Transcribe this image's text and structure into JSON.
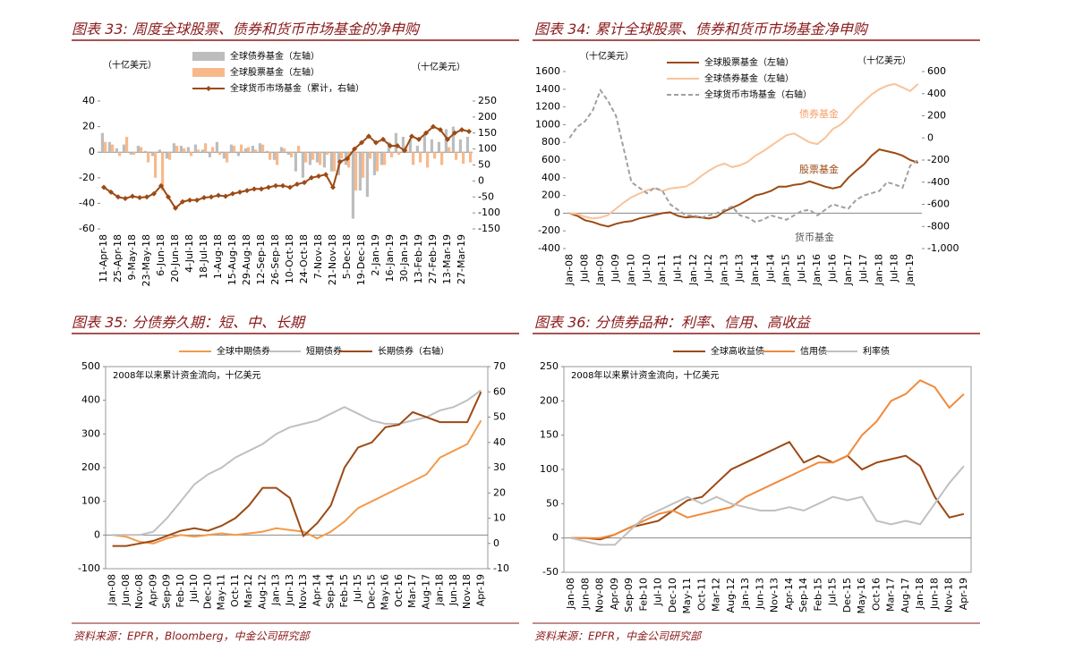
{
  "chart_data": [
    {
      "type": "bar",
      "title": "图表 33: 周度全球股票、债券和货币市场基金的净申购",
      "ylabel": "（十亿美元）",
      "y2label": "（十亿美元）",
      "categories": [
        "11-Apr-18",
        null,
        "25-Apr-18",
        null,
        "9-May-18",
        null,
        "23-May-18",
        null,
        "6-Jun-18",
        null,
        "20-Jun-18",
        null,
        "4-Jul-18",
        null,
        "18-Jul-18",
        null,
        "1-Aug-18",
        null,
        "15-Aug-18",
        null,
        "29-Aug-18",
        null,
        "12-Sep-18",
        null,
        "26-Sep-18",
        null,
        "10-Oct-18",
        null,
        "24-Oct-18",
        null,
        "7-Nov-18",
        null,
        "21-Nov-18",
        null,
        "5-Dec-18",
        null,
        "19-Dec-18",
        null,
        "2-Jan-19",
        null,
        "16-Jan-19",
        null,
        "30-Jan-19",
        null,
        "13-Feb-19",
        null,
        "27-Feb-19",
        null,
        "13-Mar-19",
        null,
        "27-Mar-19",
        null
      ],
      "series": [
        {
          "name": "全球债券基金（左轴）",
          "color": "#bdbdbd",
          "values": [
            15,
            8,
            3,
            6,
            -2,
            5,
            1,
            -3,
            2,
            -5,
            7,
            5,
            4,
            6,
            2,
            -4,
            8,
            -5,
            6,
            -3,
            3,
            5,
            7,
            1,
            -6,
            4,
            -2,
            -15,
            -20,
            -10,
            -8,
            -12,
            -15,
            -18,
            -10,
            -52,
            -30,
            -35,
            -18,
            -10,
            8,
            15,
            12,
            10,
            5,
            14,
            10,
            8,
            18,
            20,
            10,
            12
          ]
        },
        {
          "name": "全球股票基金（左轴）",
          "color": "#f8b98a",
          "values": [
            8,
            6,
            -3,
            12,
            -2,
            4,
            -8,
            -20,
            -30,
            -6,
            5,
            3,
            -3,
            2,
            7,
            4,
            -2,
            -8,
            5,
            6,
            4,
            2,
            6,
            -6,
            -10,
            3,
            -4,
            5,
            -8,
            -6,
            -10,
            -2,
            -15,
            -5,
            -12,
            -30,
            -20,
            -5,
            -15,
            -10,
            -4,
            -2,
            5,
            -10,
            -8,
            -12,
            -5,
            -10,
            4,
            -6,
            -9,
            -8
          ]
        },
        {
          "name": "全球货币市场基金（累计，右轴）",
          "color": "#9c4a14",
          "type": "line",
          "marker": "diamond",
          "axis": "y2",
          "values": [
            -20,
            -35,
            -50,
            -55,
            -48,
            -52,
            -50,
            -40,
            -15,
            -50,
            -85,
            -65,
            -60,
            -60,
            -52,
            -50,
            -45,
            -48,
            -40,
            -35,
            -30,
            -25,
            -25,
            -20,
            -15,
            -15,
            -20,
            -10,
            -5,
            10,
            15,
            20,
            -20,
            60,
            70,
            100,
            120,
            140,
            120,
            130,
            110,
            110,
            95,
            140,
            130,
            150,
            170,
            160,
            130,
            150,
            160,
            155
          ]
        }
      ],
      "ylim": [
        -60,
        40
      ],
      "yticks": [
        -60,
        -40,
        -20,
        0,
        20,
        40
      ],
      "y2lim": [
        -150,
        250
      ],
      "y2ticks": [
        -150,
        -100,
        -50,
        0,
        50,
        100,
        150,
        200,
        250
      ]
    },
    {
      "type": "line",
      "title": "图表 34: 累计全球股票、债券和货币市场基金净申购",
      "ylabel": "（十亿美元）",
      "y2label": "（十亿美元）",
      "categories": [
        "Jan-08",
        null,
        "Jul-08",
        null,
        "Jan-09",
        null,
        "Jul-09",
        null,
        "Jan-10",
        null,
        "Jul-10",
        null,
        "Jan-11",
        null,
        "Jul-11",
        null,
        "Jan-12",
        null,
        "Jul-12",
        null,
        "Jan-13",
        null,
        "Jul-13",
        null,
        "Jan-14",
        null,
        "Jul-14",
        null,
        "Jan-15",
        null,
        "Jul-15",
        null,
        "Jan-16",
        null,
        "Jul-16",
        null,
        "Jan-17",
        null,
        "Jul-17",
        null,
        "Jan-18",
        null,
        "Jul-18",
        null,
        "Jan-19",
        null
      ],
      "series": [
        {
          "name": "全球股票基金（左轴）",
          "color": "#9c4a14",
          "values": [
            0,
            -30,
            -80,
            -100,
            -130,
            -150,
            -120,
            -100,
            -90,
            -60,
            -40,
            -20,
            0,
            10,
            -30,
            -50,
            -40,
            -50,
            -60,
            -40,
            20,
            60,
            100,
            150,
            200,
            220,
            250,
            300,
            300,
            320,
            330,
            360,
            330,
            300,
            280,
            300,
            400,
            480,
            550,
            650,
            720,
            700,
            680,
            650,
            600,
            570
          ]
        },
        {
          "name": "全球债券基金（左轴）",
          "color": "#f8c39a",
          "values": [
            0,
            -10,
            -40,
            -60,
            -50,
            -20,
            50,
            120,
            180,
            220,
            260,
            280,
            250,
            280,
            290,
            300,
            350,
            420,
            480,
            530,
            560,
            520,
            540,
            580,
            650,
            700,
            760,
            820,
            880,
            900,
            850,
            800,
            780,
            850,
            950,
            1000,
            1080,
            1180,
            1260,
            1340,
            1400,
            1440,
            1460,
            1420,
            1380,
            1460
          ]
        },
        {
          "name": "全球货币市场基金（右轴）",
          "color": "#a0a0a0",
          "dash": true,
          "axis": "y2",
          "values": [
            0,
            100,
            150,
            250,
            430,
            330,
            200,
            -100,
            -400,
            -450,
            -500,
            -450,
            -480,
            -600,
            -650,
            -700,
            -700,
            -720,
            -700,
            -680,
            -650,
            -620,
            -700,
            -720,
            -760,
            -740,
            -700,
            -720,
            -740,
            -700,
            -660,
            -650,
            -700,
            -650,
            -600,
            -620,
            -640,
            -560,
            -520,
            -500,
            -480,
            -400,
            -420,
            -450,
            -250,
            -200
          ]
        }
      ],
      "annotations": [
        "债券基金",
        "股票基金",
        "货币基金"
      ],
      "ylim": [
        -400,
        1600
      ],
      "yticks": [
        -400,
        -200,
        0,
        200,
        400,
        600,
        800,
        1000,
        1200,
        1400,
        1600
      ],
      "y2lim": [
        -1000,
        600
      ],
      "y2ticks": [
        {
          "value": -1000,
          "label": "-1,000"
        },
        -800,
        -600,
        -400,
        -200,
        0,
        200,
        400,
        600
      ]
    },
    {
      "type": "line",
      "title": "图表 35: 分债券久期：短、中、长期",
      "annotation": "2008年以来累计资金流向，十亿美元",
      "source": "资料来源：EPFR，Bloomberg，中金公司研究部",
      "categories": [
        "Jan-08",
        "Jun-08",
        "Nov-08",
        "Apr-09",
        "Sep-09",
        "Feb-10",
        "Jul-10",
        "Dec-10",
        "May-11",
        "Oct-11",
        "Mar-12",
        "Aug-12",
        "Jan-13",
        "Jun-13",
        "Nov-13",
        "Apr-14",
        "Sep-14",
        "Feb-15",
        "Jul-15",
        "Dec-15",
        "May-16",
        "Oct-16",
        "Mar-17",
        "Aug-17",
        "Jan-18",
        "Jun-18",
        "Nov-18",
        "Apr-19"
      ],
      "series": [
        {
          "name": "全球中期债券",
          "color": "#f39a4a",
          "values": [
            0,
            -5,
            -20,
            -25,
            -10,
            0,
            -5,
            0,
            5,
            0,
            5,
            10,
            20,
            15,
            10,
            -10,
            10,
            40,
            80,
            100,
            120,
            140,
            160,
            180,
            230,
            250,
            270,
            340
          ]
        },
        {
          "name": "短期债券",
          "color": "#c0c0c0",
          "values": [
            0,
            0,
            0,
            10,
            50,
            100,
            150,
            180,
            200,
            230,
            250,
            270,
            300,
            320,
            330,
            340,
            360,
            380,
            360,
            340,
            330,
            330,
            340,
            350,
            370,
            380,
            400,
            430
          ]
        },
        {
          "name": "长期债券（右轴）",
          "color": "#9c4a14",
          "axis": "y2",
          "values": [
            -1,
            -1,
            0,
            1,
            3,
            5,
            6,
            5,
            7,
            10,
            15,
            22,
            22,
            18,
            3,
            8,
            15,
            30,
            38,
            40,
            46,
            47,
            52,
            50,
            48,
            48,
            48,
            60
          ]
        }
      ],
      "ylim": [
        -100,
        500
      ],
      "yticks": [
        -100,
        0,
        100,
        200,
        300,
        400,
        500
      ],
      "y2lim": [
        -10,
        70
      ],
      "y2ticks": [
        -10,
        0,
        10,
        20,
        30,
        40,
        50,
        60,
        70
      ]
    },
    {
      "type": "line",
      "title": "图表 36: 分债券品种：利率、信用、高收益",
      "annotation": "2008年以来累计资金流向，十亿美元",
      "source": "资料来源：EPFR，中金公司研究部",
      "categories": [
        "Jan-08",
        "Jun-08",
        "Nov-08",
        "Apr-09",
        "Sep-09",
        "Feb-10",
        "Jul-10",
        "Dec-10",
        "May-11",
        "Oct-11",
        "Mar-12",
        "Aug-12",
        "Jan-13",
        "Jun-13",
        "Nov-13",
        "Apr-14",
        "Sep-14",
        "Feb-15",
        "Jul-15",
        "Dec-15",
        "May-16",
        "Oct-16",
        "Mar-17",
        "Aug-17",
        "Jan-18",
        "Jun-18",
        "Nov-18",
        "Apr-19"
      ],
      "series": [
        {
          "name": "全球高收益债",
          "color": "#9c4a14",
          "values": [
            0,
            0,
            -2,
            5,
            15,
            20,
            25,
            40,
            55,
            60,
            80,
            100,
            110,
            120,
            130,
            140,
            110,
            120,
            110,
            120,
            100,
            110,
            115,
            120,
            105,
            60,
            30,
            35
          ]
        },
        {
          "name": "信用债",
          "color": "#f08a3c",
          "values": [
            0,
            0,
            0,
            5,
            15,
            25,
            35,
            40,
            30,
            35,
            40,
            45,
            60,
            70,
            80,
            90,
            100,
            110,
            110,
            120,
            150,
            170,
            200,
            210,
            230,
            220,
            190,
            210
          ]
        },
        {
          "name": "利率债",
          "color": "#c0c0c0",
          "values": [
            0,
            -5,
            -10,
            -10,
            10,
            30,
            40,
            50,
            60,
            50,
            60,
            50,
            45,
            40,
            40,
            45,
            40,
            50,
            60,
            55,
            60,
            25,
            20,
            25,
            20,
            50,
            80,
            105
          ]
        }
      ],
      "ylim": [
        -50,
        250
      ],
      "yticks": [
        -50,
        0,
        50,
        100,
        150,
        200,
        250
      ]
    }
  ]
}
